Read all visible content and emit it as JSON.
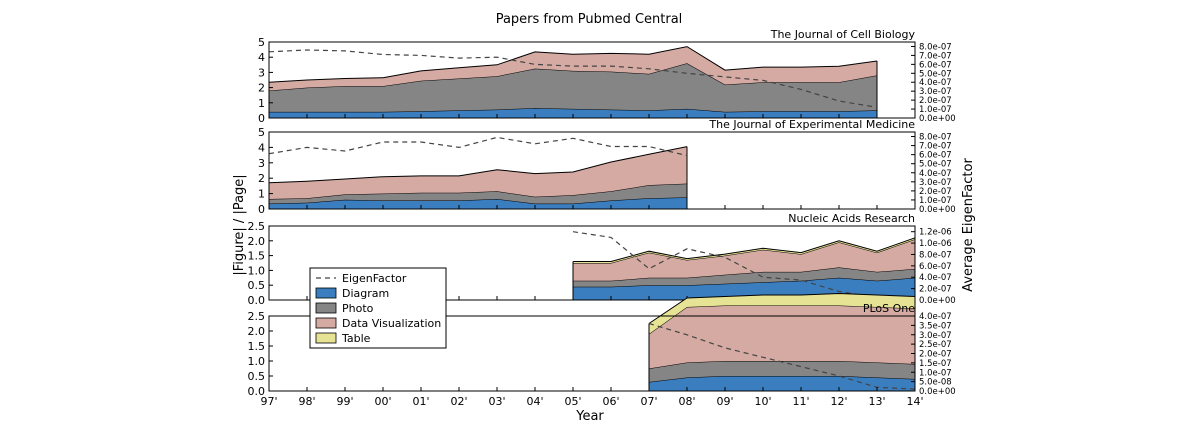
{
  "figure": {
    "title": "Papers from Pubmed Central",
    "xlabel": "Year",
    "ylabel_left": "|Figure| / |Page|",
    "ylabel_right": "Average EigenFactor"
  },
  "colors": {
    "Diagram": "#3a7ebf",
    "Photo": "#858585",
    "Data Visualization": "#d4aaa2",
    "Table": "#e6e395",
    "EigenFactor": "#444444"
  },
  "legend": {
    "entries": [
      "EigenFactor",
      "Diagram",
      "Photo",
      "Data Visualization",
      "Table"
    ],
    "placement": "lower-left of third panel"
  },
  "chart_data": [
    {
      "type": "area",
      "title": "The Journal of Cell Biology",
      "x": [
        "97'",
        "98'",
        "99'",
        "00'",
        "01'",
        "02'",
        "03'",
        "04'",
        "05'",
        "06'",
        "07'",
        "08'",
        "09'",
        "10'",
        "11'",
        "12'",
        "13'",
        "14'"
      ],
      "ylim": [
        0,
        5
      ],
      "yticks": [
        "0",
        "1",
        "2",
        "3",
        "4",
        "5"
      ],
      "series": [
        {
          "name": "Diagram",
          "values": [
            0.4,
            0.4,
            0.4,
            0.4,
            0.45,
            0.5,
            0.55,
            0.65,
            0.6,
            0.55,
            0.5,
            0.6,
            0.4,
            0.45,
            0.45,
            0.45,
            0.5,
            null
          ]
        },
        {
          "name": "Photo",
          "values": [
            1.4,
            1.6,
            1.7,
            1.7,
            2.0,
            2.1,
            2.2,
            2.6,
            2.5,
            2.5,
            2.4,
            3.0,
            1.8,
            1.9,
            1.9,
            1.9,
            2.3,
            null
          ]
        },
        {
          "name": "Data Visualization",
          "values": [
            0.55,
            0.5,
            0.5,
            0.55,
            0.65,
            0.7,
            0.75,
            1.1,
            1.1,
            1.2,
            1.3,
            1.1,
            0.95,
            1.0,
            1.0,
            1.05,
            0.95,
            null
          ]
        }
      ],
      "eigenfactor": {
        "ylim": [
          0,
          8.5e-07
        ],
        "yticks": [
          "0.0e+00",
          "1.0e-07",
          "2.0e-07",
          "3.0e-07",
          "4.0e-07",
          "5.0e-07",
          "6.0e-07",
          "7.0e-07",
          "8.0e-07"
        ],
        "values": [
          7.4e-07,
          7.6e-07,
          7.5e-07,
          7.1e-07,
          7e-07,
          6.7e-07,
          6.8e-07,
          6e-07,
          5.8e-07,
          5.8e-07,
          5.5e-07,
          5e-07,
          4.6e-07,
          4.2e-07,
          3.2e-07,
          1.9e-07,
          1.2e-07,
          null
        ]
      }
    },
    {
      "type": "area",
      "title": "The Journal of Experimental Medicine",
      "x": [
        "97'",
        "98'",
        "99'",
        "00'",
        "01'",
        "02'",
        "03'",
        "04'",
        "05'",
        "06'",
        "07'",
        "08'",
        "09'",
        "10'",
        "11'",
        "12'",
        "13'",
        "14'"
      ],
      "ylim": [
        0,
        5
      ],
      "yticks": [
        "0",
        "1",
        "2",
        "3",
        "4",
        "5"
      ],
      "series": [
        {
          "name": "Diagram",
          "values": [
            0.35,
            0.4,
            0.6,
            0.55,
            0.55,
            0.55,
            0.65,
            0.35,
            0.35,
            0.55,
            0.7,
            0.75,
            null,
            null,
            null,
            null,
            null,
            null
          ]
        },
        {
          "name": "Photo",
          "values": [
            0.3,
            0.3,
            0.35,
            0.45,
            0.5,
            0.5,
            0.5,
            0.45,
            0.55,
            0.6,
            0.85,
            0.9,
            null,
            null,
            null,
            null,
            null,
            null
          ]
        },
        {
          "name": "Data Visualization",
          "values": [
            1.05,
            1.1,
            1.0,
            1.1,
            1.1,
            1.1,
            1.4,
            1.5,
            1.5,
            1.9,
            2.0,
            2.4,
            null,
            null,
            null,
            null,
            null,
            null
          ]
        }
      ],
      "eigenfactor": {
        "ylim": [
          0,
          8.5e-07
        ],
        "yticks": [
          "0.0e+00",
          "1.0e-07",
          "2.0e-07",
          "3.0e-07",
          "4.0e-07",
          "5.0e-07",
          "6.0e-07",
          "7.0e-07",
          "8.0e-07"
        ],
        "values": [
          6.1e-07,
          6.8e-07,
          6.4e-07,
          7.4e-07,
          7.4e-07,
          6.8e-07,
          7.9e-07,
          7.2e-07,
          7.8e-07,
          6.9e-07,
          6.9e-07,
          5.9e-07,
          null,
          null,
          null,
          null,
          null,
          null
        ]
      }
    },
    {
      "type": "area",
      "title": "Nucleic Acids Research",
      "x": [
        "97'",
        "98'",
        "99'",
        "00'",
        "01'",
        "02'",
        "03'",
        "04'",
        "05'",
        "06'",
        "07'",
        "08'",
        "09'",
        "10'",
        "11'",
        "12'",
        "13'",
        "14'"
      ],
      "ylim": [
        0,
        2.5
      ],
      "yticks": [
        "0.0",
        "0.5",
        "1.0",
        "1.5",
        "2.0",
        "2.5"
      ],
      "series": [
        {
          "name": "Diagram",
          "values": [
            null,
            null,
            null,
            null,
            null,
            null,
            null,
            null,
            0.45,
            0.45,
            0.5,
            0.5,
            0.55,
            0.6,
            0.65,
            0.75,
            0.65,
            0.75
          ]
        },
        {
          "name": "Photo",
          "values": [
            null,
            null,
            null,
            null,
            null,
            null,
            null,
            null,
            0.2,
            0.2,
            0.25,
            0.25,
            0.3,
            0.35,
            0.3,
            0.35,
            0.3,
            0.3
          ]
        },
        {
          "name": "Data Visualization",
          "values": [
            null,
            null,
            null,
            null,
            null,
            null,
            null,
            null,
            0.6,
            0.6,
            0.85,
            0.6,
            0.65,
            0.75,
            0.6,
            0.85,
            0.65,
            1.0
          ]
        },
        {
          "name": "Table",
          "values": [
            null,
            null,
            null,
            null,
            null,
            null,
            null,
            null,
            0.05,
            0.05,
            0.05,
            0.05,
            0.05,
            0.05,
            0.05,
            0.05,
            0.05,
            0.05
          ]
        }
      ],
      "eigenfactor": {
        "ylim": [
          0,
          1.3e-06
        ],
        "yticks": [
          "0.0e+00",
          "2.0e-07",
          "4.0e-07",
          "6.0e-07",
          "8.0e-07",
          "1.0e-06",
          "1.2e-06"
        ],
        "values": [
          null,
          null,
          null,
          null,
          null,
          null,
          null,
          null,
          1.2e-06,
          1.1e-06,
          5.5e-07,
          9e-07,
          7.5e-07,
          4e-07,
          3.5e-07,
          1.5e-07,
          5e-08,
          null
        ]
      }
    },
    {
      "type": "area",
      "title": "PLoS One",
      "x": [
        "97'",
        "98'",
        "99'",
        "00'",
        "01'",
        "02'",
        "03'",
        "04'",
        "05'",
        "06'",
        "07'",
        "08'",
        "09'",
        "10'",
        "11'",
        "12'",
        "13'",
        "14'"
      ],
      "ylim": [
        0,
        2.5
      ],
      "yticks": [
        "0.0",
        "0.5",
        "1.0",
        "1.5",
        "2.0",
        "2.5"
      ],
      "series": [
        {
          "name": "Diagram",
          "values": [
            null,
            null,
            null,
            null,
            null,
            null,
            null,
            null,
            null,
            null,
            0.3,
            0.45,
            0.5,
            0.5,
            0.5,
            0.5,
            0.45,
            0.4
          ]
        },
        {
          "name": "Photo",
          "values": [
            null,
            null,
            null,
            null,
            null,
            null,
            null,
            null,
            null,
            null,
            0.45,
            0.5,
            0.5,
            0.5,
            0.5,
            0.5,
            0.5,
            0.5
          ]
        },
        {
          "name": "Data Visualization",
          "values": [
            null,
            null,
            null,
            null,
            null,
            null,
            null,
            null,
            null,
            null,
            1.15,
            1.85,
            1.85,
            1.85,
            1.85,
            1.85,
            1.85,
            1.85
          ]
        },
        {
          "name": "Table",
          "values": [
            null,
            null,
            null,
            null,
            null,
            null,
            null,
            null,
            null,
            null,
            0.35,
            0.3,
            0.3,
            0.35,
            0.35,
            0.4,
            0.4,
            0.4
          ]
        }
      ],
      "eigenfactor": {
        "ylim": [
          0,
          4e-07
        ],
        "yticks": [
          "0.0e+00",
          "5.0e-08",
          "1.0e-07",
          "1.5e-07",
          "2.0e-07",
          "2.5e-07",
          "3.0e-07",
          "3.5e-07",
          "4.0e-07"
        ],
        "values": [
          null,
          null,
          null,
          null,
          null,
          null,
          null,
          null,
          null,
          null,
          3.6e-07,
          3e-07,
          2.3e-07,
          1.8e-07,
          1.3e-07,
          8e-08,
          2e-08,
          1e-08
        ]
      }
    }
  ]
}
